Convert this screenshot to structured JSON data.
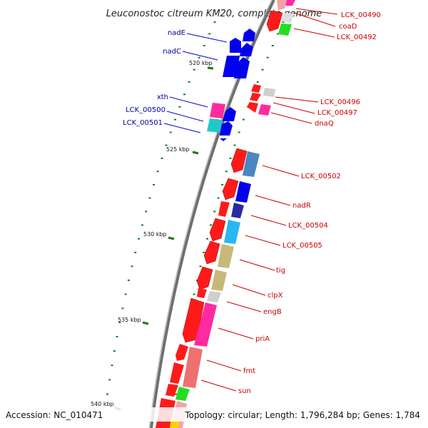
{
  "title": "Leuconostoc citreum KM20, complete genome",
  "footer": {
    "accession": "Accession: NC_010471",
    "topology": "Topology: circular; Length: 1,796,284 bp; Genes: 1,784"
  },
  "colors": {
    "left_labels": "#00009f",
    "right_labels": "#cc0000",
    "backbone": "#808080",
    "tick_marks": "#1a7a1a"
  },
  "ticks": [
    "520 kbp",
    "525 kbp",
    "530 kbp",
    "535 kbp",
    "540 kbp"
  ],
  "left_genes": [
    "nadE",
    "nadC",
    "xth",
    "LCK_00500",
    "LCK_00501"
  ],
  "right_genes": [
    "LCK_00490",
    "coaD",
    "LCK_00492",
    "LCK_00496",
    "LCK_00497",
    "dnaQ",
    "LCK_00502",
    "nadR",
    "LCK_00504",
    "LCK_00505",
    "tig",
    "clpX",
    "engB",
    "priA",
    "fmt",
    "sun"
  ]
}
